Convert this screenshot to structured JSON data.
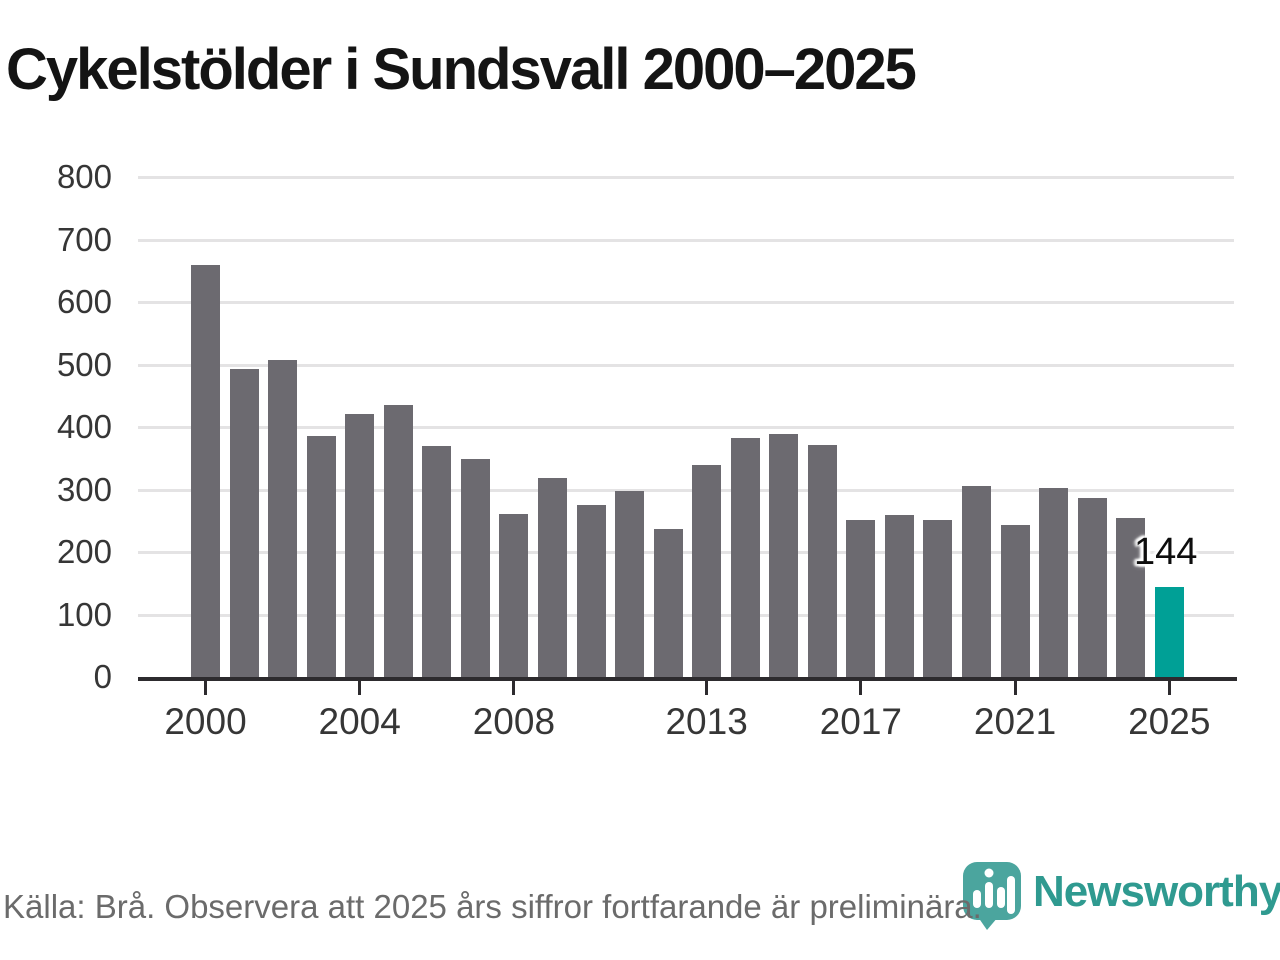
{
  "title": "Cykelstölder i Sundsvall 2000–2025",
  "chart_data": {
    "type": "bar",
    "title": "Cykelstölder i Sundsvall 2000–2025",
    "x": [
      2000,
      2001,
      2002,
      2003,
      2004,
      2005,
      2006,
      2007,
      2008,
      2009,
      2010,
      2011,
      2012,
      2013,
      2014,
      2015,
      2016,
      2017,
      2018,
      2019,
      2020,
      2021,
      2022,
      2023,
      2024,
      2025
    ],
    "values": [
      660,
      493,
      507,
      386,
      421,
      436,
      370,
      349,
      261,
      319,
      276,
      298,
      237,
      340,
      383,
      389,
      372,
      251,
      260,
      252,
      305,
      244,
      303,
      286,
      254,
      144
    ],
    "highlight_year": 2025,
    "highlight_value": 144,
    "annotation_label": "144",
    "y_ticks": [
      0,
      100,
      200,
      300,
      400,
      500,
      600,
      700,
      800
    ],
    "x_ticks": [
      2000,
      2004,
      2008,
      2013,
      2017,
      2021,
      2025
    ],
    "ylim": [
      0,
      800
    ],
    "grid": "horizontal",
    "legend": "none",
    "xlabel": "",
    "ylabel": ""
  },
  "colors": {
    "bar": "#6c6a70",
    "highlight": "#00a096",
    "grid": "#e4e3e4",
    "axis": "#2d2b2e",
    "tick_text": "#363636",
    "logo_teal": "#4ba59e",
    "logo_text_teal": "#2f9a90"
  },
  "footer": {
    "source": "Källa: Brå. Observera att 2025 års siffror fortfarande är preliminära.",
    "logo_text": "Newsworthy"
  },
  "icons": {
    "logo_icon": "newsworthy-pin-barchart-icon"
  }
}
